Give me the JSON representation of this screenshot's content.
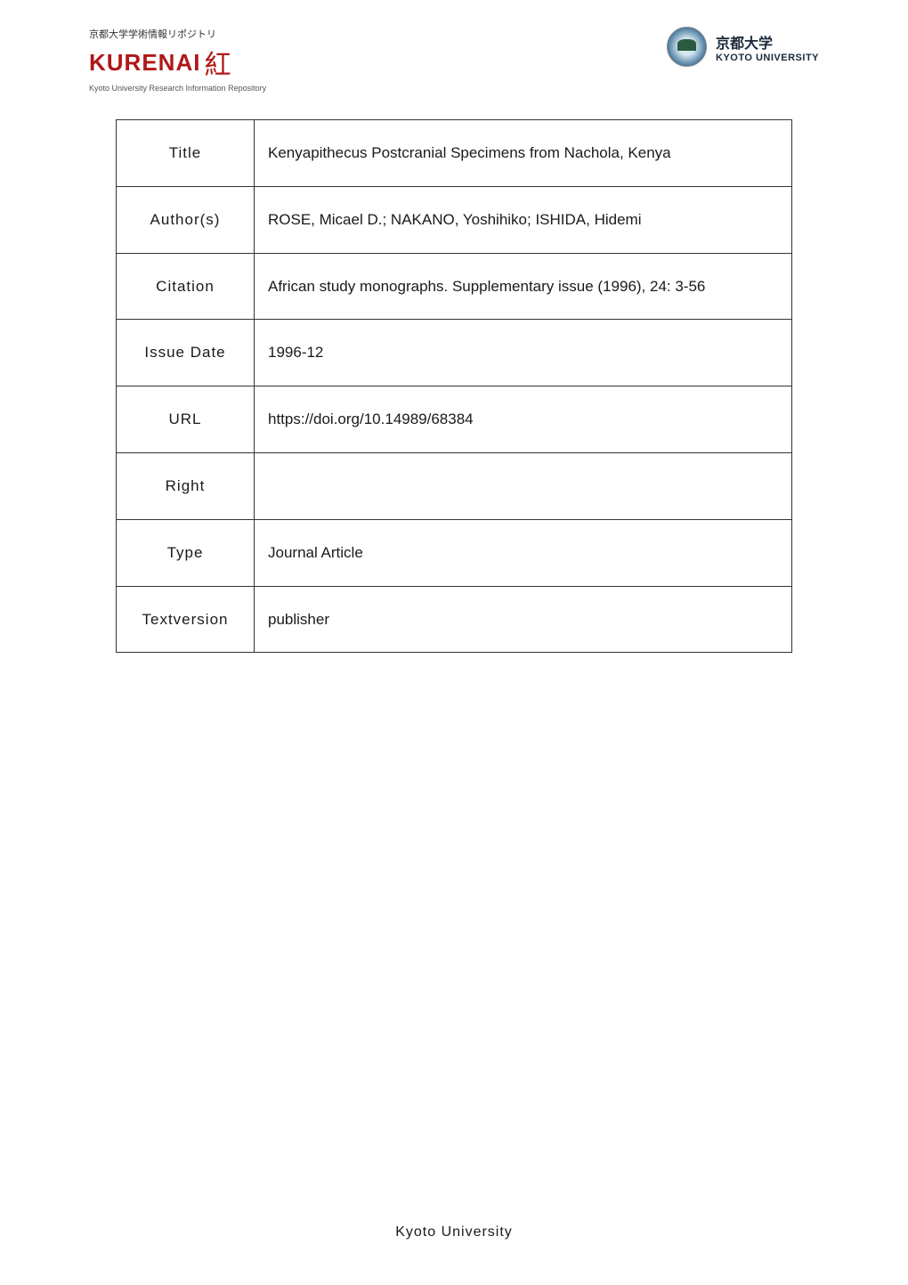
{
  "header": {
    "left": {
      "top_text": "京都大学学術情報リポジトリ",
      "logo_text": "KURENAI",
      "logo_kanji": "紅",
      "bottom_text": "Kyoto University Research Information Repository"
    },
    "right": {
      "name_jp": "京都大学",
      "name_en": "KYOTO UNIVERSITY"
    }
  },
  "metadata": {
    "rows": [
      {
        "label": "Title",
        "value": "Kenyapithecus Postcranial Specimens from Nachola, Kenya"
      },
      {
        "label": "Author(s)",
        "value": "ROSE, Micael D.; NAKANO, Yoshihiko; ISHIDA, Hidemi"
      },
      {
        "label": "Citation",
        "value": "African study monographs. Supplementary issue (1996), 24: 3-56"
      },
      {
        "label": "Issue Date",
        "value": "1996-12"
      },
      {
        "label": "URL",
        "value": "https://doi.org/10.14989/68384"
      },
      {
        "label": "Right",
        "value": ""
      },
      {
        "label": "Type",
        "value": "Journal Article"
      },
      {
        "label": "Textversion",
        "value": "publisher"
      }
    ]
  },
  "footer": {
    "text": "Kyoto University"
  }
}
